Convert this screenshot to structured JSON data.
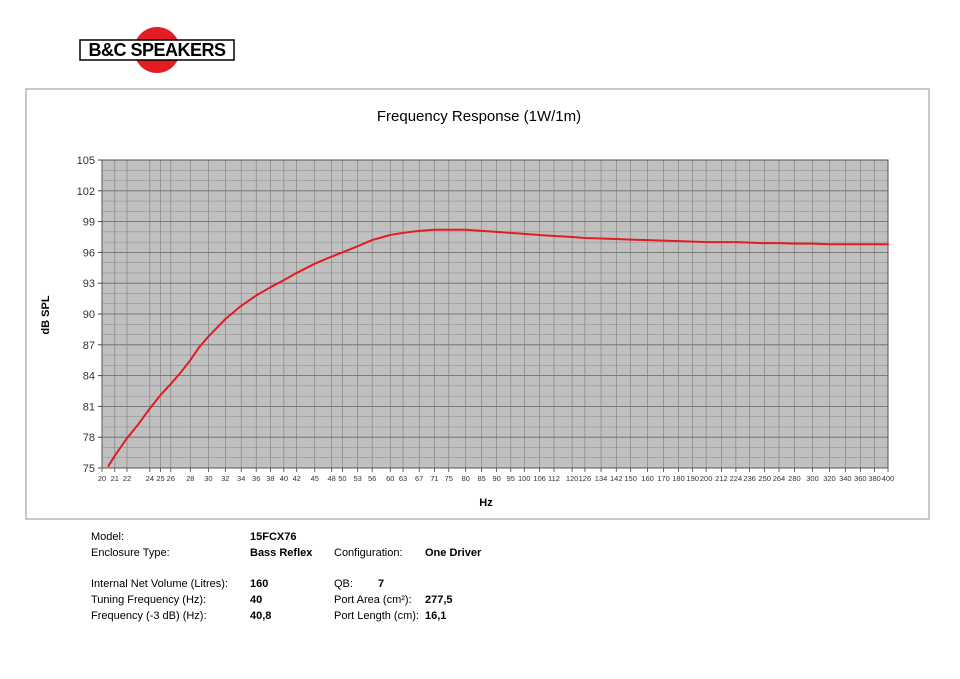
{
  "brand": {
    "name": "B&C SPEAKERS",
    "accent": "#e31b23"
  },
  "chart_data": {
    "type": "line",
    "title": "Frequency Response (1W/1m)",
    "xlabel": "Hz",
    "ylabel": "dB SPL",
    "x_scale": "log",
    "xlim": [
      20,
      400
    ],
    "ylim": [
      75,
      105
    ],
    "yticks": [
      75,
      78,
      81,
      84,
      87,
      90,
      93,
      96,
      99,
      102,
      105
    ],
    "xticks": [
      20,
      21,
      22,
      24,
      25,
      26,
      28,
      30,
      32,
      34,
      36,
      38,
      40,
      42,
      45,
      48,
      50,
      53,
      56,
      60,
      63,
      67,
      71,
      75,
      80,
      85,
      90,
      95,
      100,
      106,
      112,
      120,
      126,
      134,
      142,
      150,
      160,
      170,
      180,
      190,
      200,
      212,
      224,
      236,
      250,
      264,
      280,
      300,
      320,
      340,
      360,
      380,
      400
    ],
    "grid": true,
    "background": "#c0c0c0",
    "series": [
      {
        "color": "#e31b23",
        "x": [
          20.5,
          21,
          22,
          23,
          24,
          25,
          26,
          27,
          28,
          29,
          30,
          32,
          34,
          36,
          38,
          40,
          42,
          45,
          48,
          50,
          53,
          56,
          60,
          63,
          67,
          71,
          75,
          80,
          85,
          90,
          95,
          100,
          106,
          112,
          120,
          126,
          134,
          142,
          150,
          160,
          170,
          180,
          190,
          200,
          212,
          224,
          236,
          250,
          264,
          280,
          300,
          320,
          340,
          360,
          380,
          400
        ],
        "y": [
          75.2,
          76.2,
          77.9,
          79.3,
          80.8,
          82.1,
          83.2,
          84.3,
          85.5,
          86.8,
          87.8,
          89.5,
          90.8,
          91.8,
          92.6,
          93.3,
          94.0,
          94.9,
          95.6,
          96.0,
          96.6,
          97.2,
          97.7,
          97.9,
          98.1,
          98.2,
          98.2,
          98.2,
          98.1,
          98.0,
          97.9,
          97.8,
          97.7,
          97.6,
          97.5,
          97.4,
          97.35,
          97.3,
          97.25,
          97.2,
          97.15,
          97.1,
          97.05,
          97.0,
          97.0,
          97.0,
          96.95,
          96.9,
          96.9,
          96.85,
          96.85,
          96.8,
          96.8,
          96.8,
          96.8,
          96.8
        ]
      }
    ]
  },
  "specs": {
    "model": {
      "label": "Model:",
      "value": "15FCX76"
    },
    "enclosure": {
      "label": "Enclosure Type:",
      "value": "Bass Reflex"
    },
    "configuration": {
      "label": "Configuration:",
      "value": "One Driver"
    },
    "volume": {
      "label": "Internal  Net Volume (Litres):",
      "value": "160"
    },
    "qb": {
      "label": "QB:",
      "value": "7"
    },
    "tuning": {
      "label": "Tuning Frequency (Hz):",
      "value": "40"
    },
    "port_area": {
      "label": "Port Area (cm²):",
      "value": "277,5"
    },
    "f3": {
      "label": "Frequency (-3 dB) (Hz):",
      "value": "40,8"
    },
    "port_length": {
      "label": "Port Length (cm):",
      "value": "16,1"
    }
  }
}
